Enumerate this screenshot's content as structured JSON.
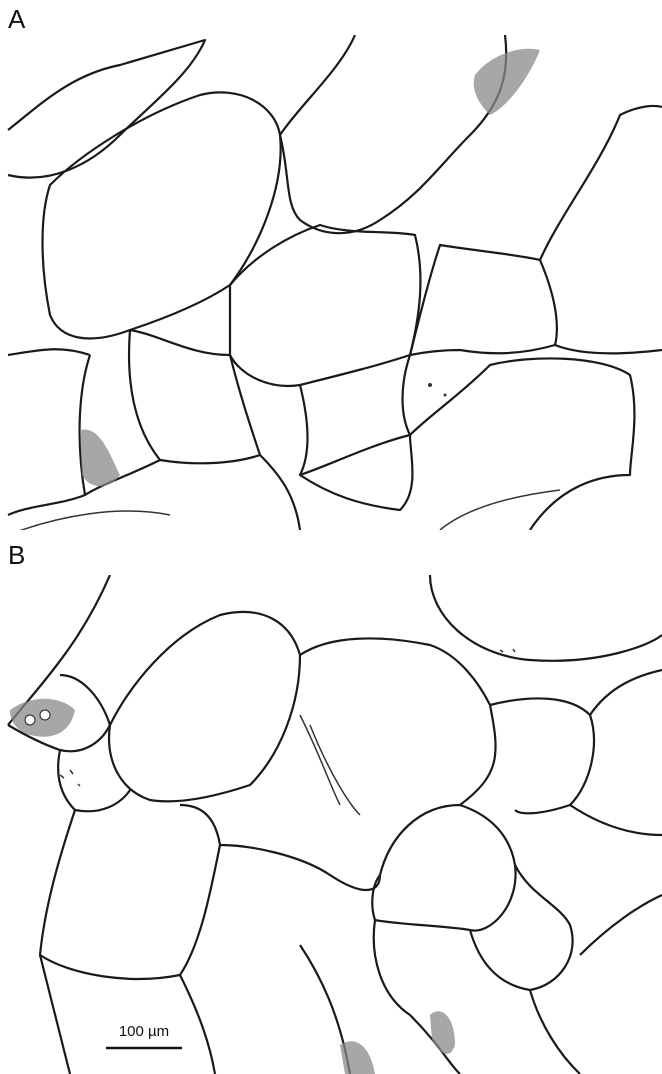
{
  "panels": [
    {
      "label": "A"
    },
    {
      "label": "B",
      "scale_bar": {
        "label": "100 µm"
      }
    }
  ]
}
